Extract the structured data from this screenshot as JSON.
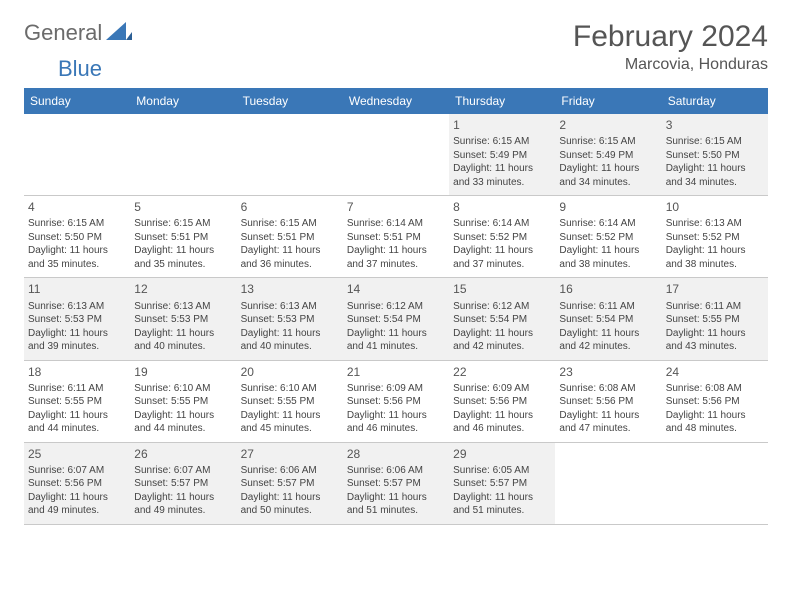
{
  "logo": {
    "text1": "General",
    "text2": "Blue",
    "color1": "#6b6b6b",
    "color2": "#3a77b7"
  },
  "header": {
    "month_title": "February 2024",
    "location": "Marcovia, Honduras"
  },
  "colors": {
    "header_bg": "#3a77b7",
    "header_fg": "#ffffff",
    "cell_border": "#c9c9c9",
    "shade_bg": "#f1f1f1",
    "text": "#444444"
  },
  "day_labels": [
    "Sunday",
    "Monday",
    "Tuesday",
    "Wednesday",
    "Thursday",
    "Friday",
    "Saturday"
  ],
  "weeks": [
    [
      {
        "blank": true
      },
      {
        "blank": true
      },
      {
        "blank": true
      },
      {
        "blank": true
      },
      {
        "day": 1,
        "shade": true,
        "sunrise": "6:15 AM",
        "sunset": "5:49 PM",
        "daylight": "11 hours and 33 minutes."
      },
      {
        "day": 2,
        "shade": true,
        "sunrise": "6:15 AM",
        "sunset": "5:49 PM",
        "daylight": "11 hours and 34 minutes."
      },
      {
        "day": 3,
        "shade": true,
        "sunrise": "6:15 AM",
        "sunset": "5:50 PM",
        "daylight": "11 hours and 34 minutes."
      }
    ],
    [
      {
        "day": 4,
        "sunrise": "6:15 AM",
        "sunset": "5:50 PM",
        "daylight": "11 hours and 35 minutes."
      },
      {
        "day": 5,
        "sunrise": "6:15 AM",
        "sunset": "5:51 PM",
        "daylight": "11 hours and 35 minutes."
      },
      {
        "day": 6,
        "sunrise": "6:15 AM",
        "sunset": "5:51 PM",
        "daylight": "11 hours and 36 minutes."
      },
      {
        "day": 7,
        "sunrise": "6:14 AM",
        "sunset": "5:51 PM",
        "daylight": "11 hours and 37 minutes."
      },
      {
        "day": 8,
        "sunrise": "6:14 AM",
        "sunset": "5:52 PM",
        "daylight": "11 hours and 37 minutes."
      },
      {
        "day": 9,
        "sunrise": "6:14 AM",
        "sunset": "5:52 PM",
        "daylight": "11 hours and 38 minutes."
      },
      {
        "day": 10,
        "sunrise": "6:13 AM",
        "sunset": "5:52 PM",
        "daylight": "11 hours and 38 minutes."
      }
    ],
    [
      {
        "day": 11,
        "shade": true,
        "sunrise": "6:13 AM",
        "sunset": "5:53 PM",
        "daylight": "11 hours and 39 minutes."
      },
      {
        "day": 12,
        "shade": true,
        "sunrise": "6:13 AM",
        "sunset": "5:53 PM",
        "daylight": "11 hours and 40 minutes."
      },
      {
        "day": 13,
        "shade": true,
        "sunrise": "6:13 AM",
        "sunset": "5:53 PM",
        "daylight": "11 hours and 40 minutes."
      },
      {
        "day": 14,
        "shade": true,
        "sunrise": "6:12 AM",
        "sunset": "5:54 PM",
        "daylight": "11 hours and 41 minutes."
      },
      {
        "day": 15,
        "shade": true,
        "sunrise": "6:12 AM",
        "sunset": "5:54 PM",
        "daylight": "11 hours and 42 minutes."
      },
      {
        "day": 16,
        "shade": true,
        "sunrise": "6:11 AM",
        "sunset": "5:54 PM",
        "daylight": "11 hours and 42 minutes."
      },
      {
        "day": 17,
        "shade": true,
        "sunrise": "6:11 AM",
        "sunset": "5:55 PM",
        "daylight": "11 hours and 43 minutes."
      }
    ],
    [
      {
        "day": 18,
        "sunrise": "6:11 AM",
        "sunset": "5:55 PM",
        "daylight": "11 hours and 44 minutes."
      },
      {
        "day": 19,
        "sunrise": "6:10 AM",
        "sunset": "5:55 PM",
        "daylight": "11 hours and 44 minutes."
      },
      {
        "day": 20,
        "sunrise": "6:10 AM",
        "sunset": "5:55 PM",
        "daylight": "11 hours and 45 minutes."
      },
      {
        "day": 21,
        "sunrise": "6:09 AM",
        "sunset": "5:56 PM",
        "daylight": "11 hours and 46 minutes."
      },
      {
        "day": 22,
        "sunrise": "6:09 AM",
        "sunset": "5:56 PM",
        "daylight": "11 hours and 46 minutes."
      },
      {
        "day": 23,
        "sunrise": "6:08 AM",
        "sunset": "5:56 PM",
        "daylight": "11 hours and 47 minutes."
      },
      {
        "day": 24,
        "sunrise": "6:08 AM",
        "sunset": "5:56 PM",
        "daylight": "11 hours and 48 minutes."
      }
    ],
    [
      {
        "day": 25,
        "shade": true,
        "sunrise": "6:07 AM",
        "sunset": "5:56 PM",
        "daylight": "11 hours and 49 minutes."
      },
      {
        "day": 26,
        "shade": true,
        "sunrise": "6:07 AM",
        "sunset": "5:57 PM",
        "daylight": "11 hours and 49 minutes."
      },
      {
        "day": 27,
        "shade": true,
        "sunrise": "6:06 AM",
        "sunset": "5:57 PM",
        "daylight": "11 hours and 50 minutes."
      },
      {
        "day": 28,
        "shade": true,
        "sunrise": "6:06 AM",
        "sunset": "5:57 PM",
        "daylight": "11 hours and 51 minutes."
      },
      {
        "day": 29,
        "shade": true,
        "sunrise": "6:05 AM",
        "sunset": "5:57 PM",
        "daylight": "11 hours and 51 minutes."
      },
      {
        "blank": true
      },
      {
        "blank": true
      }
    ]
  ],
  "labels": {
    "sunrise": "Sunrise:",
    "sunset": "Sunset:",
    "daylight": "Daylight:"
  }
}
